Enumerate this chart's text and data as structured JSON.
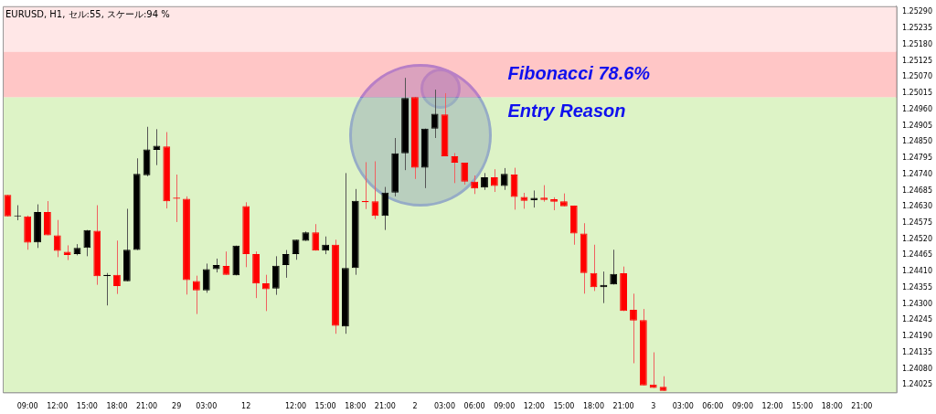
{
  "chart_data": {
    "type": "candlestick",
    "title": "EURUSD, H1, セル:55, スケール:94 %",
    "categories": [
      null,
      null,
      "09:00",
      null,
      null,
      "12:00",
      null,
      null,
      "15:00",
      null,
      null,
      "18:00",
      null,
      null,
      "21:00",
      null,
      null,
      "29",
      null,
      null,
      "03:00",
      null,
      null,
      null,
      "12",
      null,
      null,
      null,
      null,
      "12:00",
      null,
      null,
      "15:00",
      null,
      null,
      "18:00",
      null,
      null,
      "21:00",
      null,
      null,
      "2",
      null,
      null,
      "03:00",
      null,
      null,
      "06:00",
      null,
      null,
      "09:00",
      null,
      null,
      "12:00",
      null,
      null,
      "15:00",
      null,
      null,
      "18:00",
      null,
      null,
      "21:00",
      null,
      null,
      "3",
      null,
      null,
      "03:00",
      null,
      null,
      "06:00",
      null,
      null,
      "09:00",
      null,
      null,
      "12:00",
      null,
      null,
      "15:00",
      null,
      null,
      "18:00",
      null,
      null,
      "21:00",
      null,
      null,
      null
    ],
    "ohlc": [
      [
        1.2467,
        1.2467,
        1.24597,
        1.24597
      ],
      [
        1.24597,
        1.24635,
        1.24584,
        1.246
      ],
      [
        1.24597,
        1.246,
        1.24484,
        1.24508
      ],
      [
        1.24509,
        1.24638,
        1.2449,
        1.24612
      ],
      [
        1.24612,
        1.24649,
        1.24533,
        1.24533
      ],
      [
        1.24533,
        1.24585,
        1.24459,
        1.2448
      ],
      [
        1.24477,
        1.24499,
        1.24449,
        1.24466
      ],
      [
        1.24469,
        1.24503,
        1.24465,
        1.2449
      ],
      [
        1.2449,
        1.24551,
        1.24462,
        1.24551
      ],
      [
        1.24548,
        1.24635,
        1.24365,
        1.24394
      ],
      [
        1.24395,
        1.24405,
        1.24295,
        1.24399
      ],
      [
        1.24399,
        1.24515,
        1.24334,
        1.24361
      ],
      [
        1.24377,
        1.24623,
        1.24377,
        1.24484
      ],
      [
        1.24483,
        1.24794,
        1.24483,
        1.24741
      ],
      [
        1.24737,
        1.24901,
        1.24733,
        1.24824
      ],
      [
        1.24823,
        1.24893,
        1.24771,
        1.24837
      ],
      [
        1.24834,
        1.24883,
        1.24624,
        1.24648
      ],
      [
        1.24661,
        1.24739,
        1.24578,
        1.24657
      ],
      [
        1.24657,
        1.24665,
        1.24332,
        1.24381
      ],
      [
        1.24378,
        1.24396,
        1.24266,
        1.24346
      ],
      [
        1.24346,
        1.24437,
        1.24338,
        1.24418
      ],
      [
        1.24418,
        1.24454,
        1.24407,
        1.24432
      ],
      [
        1.24429,
        1.24478,
        1.24399,
        1.24399
      ],
      [
        1.24397,
        1.24498,
        1.24397,
        1.24498
      ],
      [
        1.24632,
        1.24645,
        1.24425,
        1.24469
      ],
      [
        1.24469,
        1.24478,
        1.2432,
        1.24369
      ],
      [
        1.2437,
        1.24399,
        1.24276,
        1.2435
      ],
      [
        1.24352,
        1.24462,
        1.24331,
        1.2443
      ],
      [
        1.24432,
        1.24483,
        1.24389,
        1.24469
      ],
      [
        1.24469,
        1.24518,
        1.2445,
        1.24518
      ],
      [
        1.24514,
        1.24546,
        1.24514,
        1.24543
      ],
      [
        1.24543,
        1.24571,
        1.24481,
        1.24481
      ],
      [
        1.24481,
        1.24529,
        1.24469,
        1.24501
      ],
      [
        1.24501,
        1.24518,
        1.24199,
        1.24226
      ],
      [
        1.24224,
        1.24744,
        1.24199,
        1.24422
      ],
      [
        1.24422,
        1.2469,
        1.24399,
        1.2465
      ],
      [
        1.24649,
        1.24781,
        1.24622,
        1.24645
      ],
      [
        1.24648,
        1.24784,
        1.24588,
        1.24599
      ],
      [
        1.24599,
        1.24697,
        1.24551,
        1.24678
      ],
      [
        1.24678,
        1.24863,
        1.24665,
        1.24811
      ],
      [
        1.24811,
        1.25067,
        1.24754,
        1.24999
      ],
      [
        1.25002,
        1.25002,
        1.24724,
        1.24762
      ],
      [
        1.24762,
        1.24895,
        1.24693,
        1.24895
      ],
      [
        1.24895,
        1.25027,
        1.24863,
        1.24945
      ],
      [
        1.24943,
        1.25015,
        1.24801,
        1.24801
      ],
      [
        1.24801,
        1.24812,
        1.2471,
        1.24779
      ],
      [
        1.24779,
        1.24779,
        1.24705,
        1.24715
      ],
      [
        1.24715,
        1.24736,
        1.24673,
        1.24692
      ],
      [
        1.24695,
        1.24744,
        1.24687,
        1.2473
      ],
      [
        1.2473,
        1.24757,
        1.2468,
        1.247
      ],
      [
        1.247,
        1.24761,
        1.24687,
        1.24741
      ],
      [
        1.24739,
        1.24762,
        1.2462,
        1.24663
      ],
      [
        1.24663,
        1.24677,
        1.24623,
        1.2465
      ],
      [
        1.24652,
        1.24685,
        1.24627,
        1.2466
      ],
      [
        1.24661,
        1.24703,
        1.24647,
        1.24653
      ],
      [
        1.24655,
        1.24662,
        1.24618,
        1.24647
      ],
      [
        1.24648,
        1.24675,
        1.24631,
        1.24631
      ],
      [
        1.24634,
        1.24634,
        1.24501,
        1.24539
      ],
      [
        1.24539,
        1.24574,
        1.24335,
        1.24405
      ],
      [
        1.24405,
        1.24501,
        1.24344,
        1.24357
      ],
      [
        1.24357,
        1.2441,
        1.24303,
        1.24365
      ],
      [
        1.24366,
        1.24484,
        1.24366,
        1.24402
      ],
      [
        1.24404,
        1.24427,
        1.24276,
        1.24276
      ],
      [
        1.2428,
        1.24335,
        1.24099,
        1.24244
      ],
      [
        1.24245,
        1.24283,
        1.24024,
        1.24024
      ],
      [
        1.24027,
        1.24136,
        1.24015,
        1.24015
      ],
      [
        1.24019,
        1.24055,
        1.24005,
        1.24005
      ],
      null,
      null,
      null,
      null,
      null,
      null,
      null,
      null,
      null,
      null,
      null,
      null,
      null,
      null,
      null,
      null,
      null,
      null,
      null,
      null,
      null,
      null,
      null
    ],
    "colors": [
      "#ff0000",
      "#000000",
      "#ff0000",
      "#000000",
      "#ff0000",
      "#ff0000",
      "#ff0000",
      "#000000",
      "#000000",
      "#ff0000",
      "#000000",
      "#ff0000",
      "#000000",
      "#000000",
      "#000000",
      "#000000",
      "#ff0000",
      "#ff0000",
      "#ff0000",
      "#ff0000",
      "#000000",
      "#000000",
      "#ff0000",
      "#000000",
      "#ff0000",
      "#ff0000",
      "#ff0000",
      "#000000",
      "#000000",
      "#000000",
      "#000000",
      "#ff0000",
      "#000000",
      "#ff0000",
      "#000000",
      "#000000",
      "#ff0000",
      "#ff0000",
      "#000000",
      "#000000",
      "#000000",
      "#ff0000",
      "#000000",
      "#000000",
      "#ff0000",
      "#ff0000",
      "#ff0000",
      "#ff0000",
      "#000000",
      "#ff0000",
      "#000000",
      "#ff0000",
      "#ff0000",
      "#000000",
      "#ff0000",
      "#ff0000",
      "#ff0000",
      "#ff0000",
      "#ff0000",
      "#ff0000",
      "#000000",
      "#000000",
      "#ff0000",
      "#ff0000",
      "#ff0000",
      "#ff0000",
      "#ff0000",
      null,
      null,
      null,
      null,
      null,
      null,
      null,
      null,
      null,
      null,
      null,
      null,
      null,
      null,
      null,
      null,
      null,
      null,
      null,
      null,
      null,
      null,
      null
    ],
    "ylim": [
      1.24,
      1.2531
    ],
    "yticks": [
      1.24025,
      {
        "value": 1.2408,
        "label": "1.24080"
      },
      1.24135,
      {
        "value": 1.2419,
        "label": "1.24190"
      },
      1.24245,
      {
        "value": 1.243,
        "label": "1.24300"
      },
      1.24355,
      {
        "value": 1.2441,
        "label": "1.24410"
      },
      1.24465,
      {
        "value": 1.2452,
        "label": "1.24520"
      },
      1.24575,
      {
        "value": 1.2463,
        "label": "1.24630"
      },
      1.24685,
      {
        "value": 1.2474,
        "label": "1.24740"
      },
      1.24795,
      {
        "value": 1.2485,
        "label": "1.24850"
      },
      1.24905,
      {
        "value": 1.2496,
        "label": "1.24960"
      },
      1.25015,
      {
        "value": 1.2507,
        "label": "1.25070"
      },
      1.25125,
      {
        "value": 1.2518,
        "label": "1.25180"
      },
      1.25235,
      {
        "value": 1.2529,
        "label": "1.25290"
      }
    ],
    "bands": [
      {
        "axis": "y",
        "from": 1.25155,
        "to": 1.2531,
        "color": "#ffdede"
      },
      {
        "axis": "y",
        "from": 1.25001,
        "to": 1.25155,
        "color": "#ffb0b0",
        "label": "Fibonacci 78.6%"
      },
      {
        "axis": "y",
        "from": 1.24,
        "to": 1.25001,
        "color": "#d0eeb0"
      }
    ],
    "annotations": [
      "Entry Reason"
    ]
  }
}
